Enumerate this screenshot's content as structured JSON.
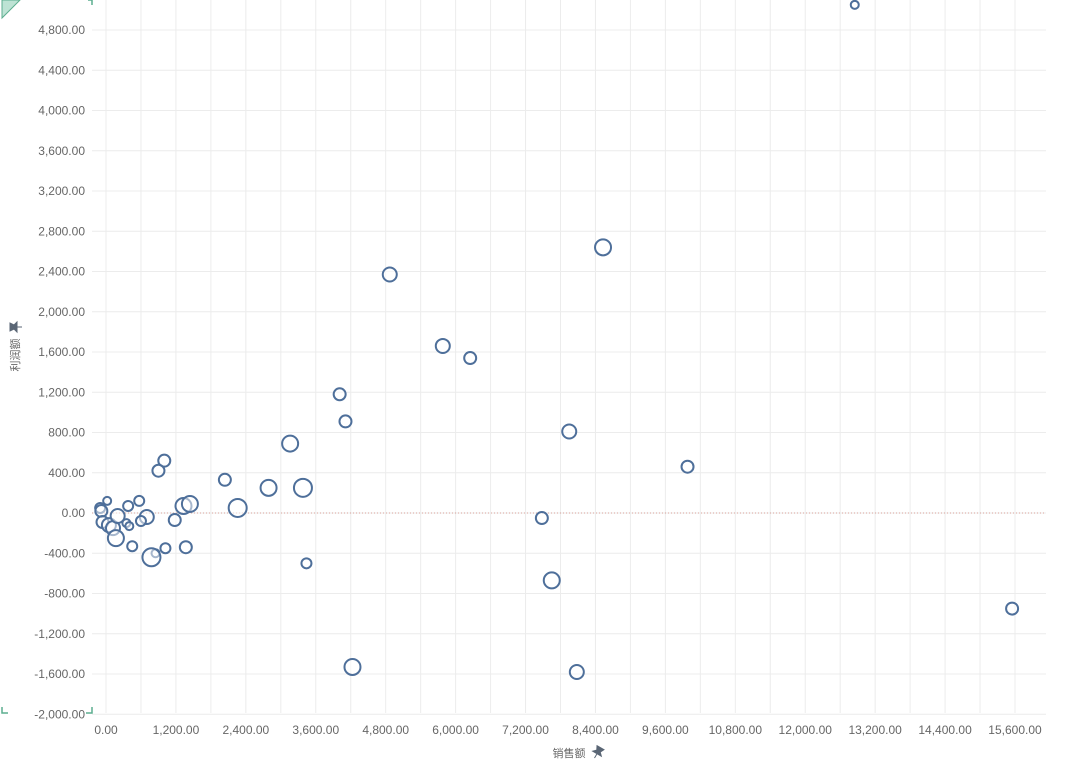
{
  "chart_data": {
    "type": "scatter",
    "title": "",
    "xlabel": "销售额",
    "ylabel": "利润额",
    "xlim": [
      -200,
      16200
    ],
    "ylim": [
      -2100,
      5050
    ],
    "x_ticks": [
      0,
      1200,
      2400,
      3600,
      4800,
      6000,
      7200,
      8400,
      9600,
      10800,
      12000,
      13200,
      14400,
      15600
    ],
    "y_ticks": [
      -2000,
      -1600,
      -1200,
      -800,
      -400,
      0,
      400,
      800,
      1200,
      1600,
      2000,
      2400,
      2800,
      3200,
      3600,
      4000,
      4400,
      4800
    ],
    "x_tick_labels": [
      "0.00",
      "1,200.00",
      "2,400.00",
      "3,600.00",
      "4,800.00",
      "6,000.00",
      "7,200.00",
      "8,400.00",
      "9,600.00",
      "10,800.00",
      "12,000.00",
      "13,200.00",
      "14,400.00",
      "15,600.00"
    ],
    "y_tick_labels": [
      "-2,000.00",
      "-1,600.00",
      "-1,200.00",
      "-800.00",
      "-400.00",
      "0.00",
      "400.00",
      "800.00",
      "1,200.00",
      "1,600.00",
      "2,000.00",
      "2,400.00",
      "2,800.00",
      "3,200.00",
      "3,600.00",
      "4,000.00",
      "4,400.00",
      "4,800.00"
    ],
    "grid": true,
    "zero_line": true,
    "marker": "hollow circle, size encodes a third measure",
    "colors": {
      "marker": "#4e6f9a",
      "zero_line": "#d9a29a",
      "grid": "#ececec",
      "text": "#666666"
    },
    "points": [
      {
        "x": 12850,
        "y": 5050,
        "size": 4
      },
      {
        "x": 8530,
        "y": 2640,
        "size": 8
      },
      {
        "x": 4870,
        "y": 2370,
        "size": 7
      },
      {
        "x": 5780,
        "y": 1660,
        "size": 7
      },
      {
        "x": 6250,
        "y": 1540,
        "size": 6
      },
      {
        "x": 4010,
        "y": 1180,
        "size": 6
      },
      {
        "x": 4110,
        "y": 910,
        "size": 6
      },
      {
        "x": 7950,
        "y": 810,
        "size": 7
      },
      {
        "x": 9980,
        "y": 460,
        "size": 6
      },
      {
        "x": 3160,
        "y": 690,
        "size": 8
      },
      {
        "x": 1000,
        "y": 520,
        "size": 6
      },
      {
        "x": 900,
        "y": 420,
        "size": 6
      },
      {
        "x": 2040,
        "y": 330,
        "size": 6
      },
      {
        "x": 2790,
        "y": 250,
        "size": 8
      },
      {
        "x": 3380,
        "y": 250,
        "size": 9
      },
      {
        "x": 2260,
        "y": 50,
        "size": 9
      },
      {
        "x": 1330,
        "y": 70,
        "size": 8
      },
      {
        "x": 1440,
        "y": 90,
        "size": 8
      },
      {
        "x": 1180,
        "y": -70,
        "size": 6
      },
      {
        "x": 700,
        "y": -40,
        "size": 7
      },
      {
        "x": 570,
        "y": 120,
        "size": 5
      },
      {
        "x": 380,
        "y": 70,
        "size": 5
      },
      {
        "x": 20,
        "y": 120,
        "size": 4
      },
      {
        "x": -100,
        "y": 50,
        "size": 5
      },
      {
        "x": -80,
        "y": 20,
        "size": 6
      },
      {
        "x": -60,
        "y": -90,
        "size": 6
      },
      {
        "x": 50,
        "y": -120,
        "size": 7
      },
      {
        "x": 120,
        "y": -150,
        "size": 7
      },
      {
        "x": 200,
        "y": -30,
        "size": 7
      },
      {
        "x": 350,
        "y": -100,
        "size": 4
      },
      {
        "x": 400,
        "y": -130,
        "size": 4
      },
      {
        "x": 600,
        "y": -80,
        "size": 5
      },
      {
        "x": 170,
        "y": -250,
        "size": 8
      },
      {
        "x": 450,
        "y": -330,
        "size": 5
      },
      {
        "x": 1020,
        "y": -350,
        "size": 5
      },
      {
        "x": 1370,
        "y": -340,
        "size": 6
      },
      {
        "x": 850,
        "y": -400,
        "size": 4
      },
      {
        "x": 780,
        "y": -440,
        "size": 9
      },
      {
        "x": 3440,
        "y": -500,
        "size": 5
      },
      {
        "x": 7480,
        "y": -50,
        "size": 6
      },
      {
        "x": 7650,
        "y": -670,
        "size": 8
      },
      {
        "x": 4230,
        "y": -1530,
        "size": 8
      },
      {
        "x": 8080,
        "y": -1580,
        "size": 7
      },
      {
        "x": 15550,
        "y": -950,
        "size": 6
      }
    ]
  }
}
